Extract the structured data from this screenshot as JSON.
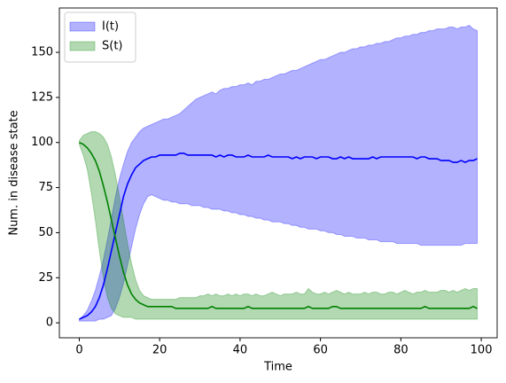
{
  "chart_data": {
    "type": "line",
    "x": [
      0,
      1,
      2,
      3,
      4,
      5,
      6,
      7,
      8,
      9,
      10,
      11,
      12,
      13,
      14,
      15,
      16,
      17,
      18,
      19,
      20,
      21,
      22,
      23,
      24,
      25,
      26,
      27,
      28,
      29,
      30,
      31,
      32,
      33,
      34,
      35,
      36,
      37,
      38,
      39,
      40,
      41,
      42,
      43,
      44,
      45,
      46,
      47,
      48,
      49,
      50,
      51,
      52,
      53,
      54,
      55,
      56,
      57,
      58,
      59,
      60,
      61,
      62,
      63,
      64,
      65,
      66,
      67,
      68,
      69,
      70,
      71,
      72,
      73,
      74,
      75,
      76,
      77,
      78,
      79,
      80,
      81,
      82,
      83,
      84,
      85,
      86,
      87,
      88,
      89,
      90,
      91,
      92,
      93,
      94,
      95,
      96,
      97,
      98,
      99
    ],
    "series": [
      {
        "name": "I(t)",
        "color": "#0000ff",
        "values": [
          2,
          3,
          4,
          6,
          9,
          14,
          21,
          30,
          40,
          50,
          60,
          70,
          77,
          82,
          86,
          88,
          90,
          91,
          92,
          92,
          93,
          93,
          93,
          93,
          93,
          94,
          94,
          93,
          93,
          93,
          93,
          93,
          93,
          93,
          92,
          93,
          92,
          93,
          93,
          92,
          92,
          92,
          93,
          92,
          92,
          92,
          92,
          93,
          92,
          92,
          92,
          92,
          92,
          91,
          92,
          91,
          92,
          92,
          92,
          91,
          92,
          92,
          92,
          91,
          91,
          92,
          91,
          92,
          91,
          91,
          91,
          91,
          91,
          92,
          91,
          92,
          92,
          92,
          92,
          92,
          92,
          92,
          92,
          92,
          91,
          92,
          92,
          91,
          91,
          91,
          90,
          90,
          90,
          89,
          89,
          90,
          89,
          90,
          90,
          91
        ],
        "upper": [
          2,
          4,
          7,
          12,
          18,
          26,
          35,
          46,
          58,
          70,
          80,
          88,
          95,
          100,
          103,
          106,
          108,
          109,
          110,
          111,
          112,
          113,
          113,
          114,
          115,
          116,
          118,
          120,
          122,
          124,
          125,
          126,
          127,
          128,
          127,
          129,
          130,
          130,
          131,
          131,
          132,
          132,
          133,
          132,
          134,
          134,
          135,
          135,
          136,
          137,
          138,
          138,
          139,
          140,
          140,
          141,
          142,
          143,
          144,
          145,
          146,
          146,
          147,
          148,
          149,
          150,
          150,
          151,
          152,
          152,
          153,
          153,
          154,
          154,
          155,
          155,
          156,
          156,
          157,
          158,
          158,
          159,
          159,
          160,
          160,
          161,
          161,
          162,
          162,
          163,
          163,
          163,
          164,
          164,
          163,
          164,
          164,
          165,
          163,
          162
        ],
        "lower": [
          1,
          1,
          1,
          1,
          1,
          2,
          2,
          3,
          4,
          8,
          14,
          22,
          32,
          42,
          52,
          60,
          66,
          70,
          71,
          70,
          69,
          68,
          68,
          67,
          67,
          66,
          66,
          66,
          65,
          65,
          65,
          64,
          64,
          63,
          63,
          63,
          62,
          62,
          61,
          61,
          60,
          60,
          59,
          59,
          58,
          58,
          57,
          57,
          56,
          56,
          56,
          55,
          55,
          54,
          54,
          53,
          53,
          52,
          52,
          52,
          51,
          51,
          50,
          50,
          49,
          49,
          48,
          48,
          48,
          47,
          47,
          47,
          46,
          46,
          46,
          45,
          45,
          45,
          45,
          44,
          44,
          44,
          44,
          44,
          44,
          43,
          43,
          43,
          43,
          43,
          43,
          43,
          43,
          43,
          43,
          43,
          44,
          44,
          44,
          44
        ]
      },
      {
        "name": "S(t)",
        "color": "#008000",
        "values": [
          100,
          99,
          97,
          94,
          90,
          84,
          76,
          67,
          57,
          47,
          37,
          28,
          21,
          16,
          13,
          11,
          10,
          9,
          9,
          9,
          9,
          9,
          9,
          9,
          8,
          8,
          8,
          8,
          8,
          8,
          8,
          8,
          8,
          9,
          8,
          8,
          8,
          8,
          8,
          8,
          8,
          8,
          9,
          8,
          8,
          8,
          8,
          8,
          8,
          8,
          8,
          8,
          8,
          8,
          8,
          8,
          8,
          9,
          8,
          8,
          8,
          8,
          8,
          9,
          9,
          8,
          8,
          8,
          8,
          8,
          8,
          8,
          8,
          8,
          8,
          8,
          8,
          8,
          8,
          8,
          8,
          8,
          8,
          8,
          8,
          8,
          9,
          8,
          8,
          8,
          8,
          8,
          8,
          8,
          8,
          8,
          8,
          8,
          9,
          8
        ],
        "upper": [
          101,
          104,
          105,
          106,
          106,
          105,
          103,
          99,
          92,
          82,
          70,
          57,
          44,
          33,
          24,
          18,
          15,
          14,
          13,
          13,
          13,
          13,
          13,
          13,
          13,
          14,
          14,
          14,
          14,
          14,
          15,
          15,
          16,
          15,
          16,
          15,
          15,
          16,
          15,
          16,
          15,
          16,
          16,
          15,
          16,
          15,
          15,
          16,
          17,
          16,
          15,
          16,
          16,
          16,
          17,
          16,
          16,
          19,
          17,
          16,
          16,
          17,
          16,
          17,
          18,
          17,
          16,
          17,
          16,
          16,
          16,
          17,
          16,
          17,
          17,
          16,
          16,
          17,
          17,
          16,
          17,
          18,
          17,
          16,
          17,
          17,
          18,
          17,
          17,
          17,
          18,
          18,
          17,
          18,
          17,
          18,
          19,
          18,
          19,
          19
        ],
        "lower": [
          99,
          93,
          85,
          72,
          57,
          40,
          25,
          14,
          8,
          5,
          4,
          3,
          3,
          3,
          2,
          2,
          2,
          2,
          2,
          2,
          2,
          2,
          2,
          2,
          2,
          2,
          2,
          2,
          2,
          2,
          2,
          2,
          2,
          2,
          2,
          2,
          2,
          2,
          2,
          2,
          2,
          2,
          2,
          2,
          2,
          2,
          2,
          2,
          2,
          2,
          2,
          2,
          2,
          2,
          2,
          2,
          2,
          2,
          2,
          2,
          2,
          2,
          2,
          2,
          2,
          2,
          2,
          2,
          2,
          2,
          2,
          2,
          2,
          2,
          2,
          2,
          2,
          2,
          2,
          2,
          2,
          2,
          2,
          2,
          2,
          2,
          2,
          2,
          2,
          2,
          2,
          2,
          2,
          2,
          2,
          2,
          2,
          2,
          2,
          2
        ]
      }
    ],
    "xlabel": "Time",
    "ylabel": "Num. in disease state",
    "xlim": [
      -4.95,
      103.95
    ],
    "ylim": [
      -8.3,
      174.6
    ],
    "xticks": [
      0,
      20,
      40,
      60,
      80,
      100
    ],
    "yticks": [
      0,
      25,
      50,
      75,
      100,
      125,
      150
    ],
    "legend": "upper left"
  }
}
